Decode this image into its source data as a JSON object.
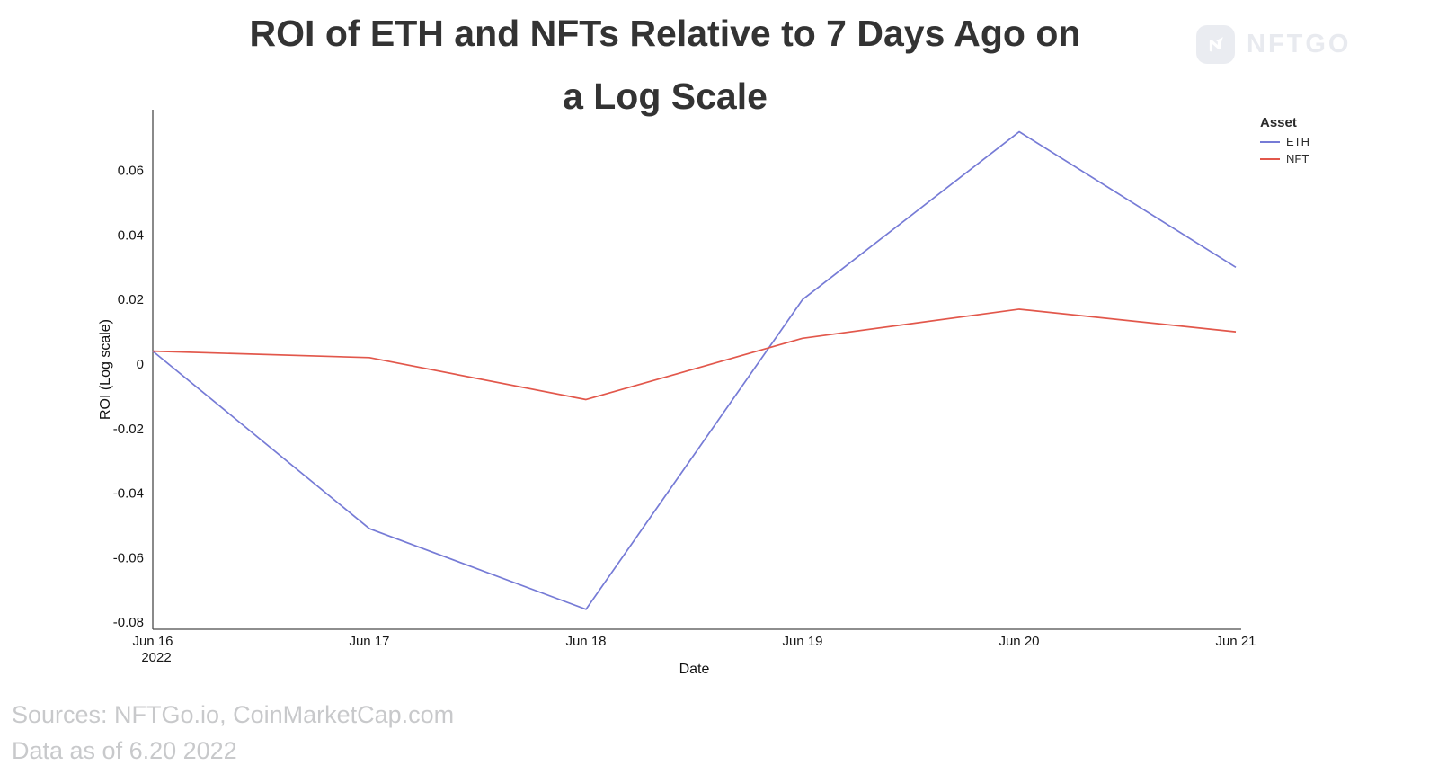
{
  "title": {
    "line1": "ROI of ETH and NFTs Relative to 7 Days Ago on",
    "line2": "a Log Scale"
  },
  "logo": {
    "text": "NFTGO"
  },
  "legend": {
    "title": "Asset",
    "items": [
      {
        "label": "ETH",
        "color": "#767bd6"
      },
      {
        "label": "NFT",
        "color": "#e2574b"
      }
    ]
  },
  "footer": {
    "sources": "Sources: NFTGo.io, CoinMarketCap.com",
    "data_as_of": "Data as of 6.20 2022"
  },
  "chart_data": {
    "type": "line",
    "title": "ROI of ETH and NFTs Relative to 7 Days Ago on a Log Scale",
    "xlabel": "Date",
    "ylabel": "ROI (Log scale)",
    "x_tick_labels": [
      "Jun 16",
      "Jun 17",
      "Jun 18",
      "Jun 19",
      "Jun 20",
      "Jun 21"
    ],
    "x_first_tick_sub": "2022",
    "y_ticks": [
      0.06,
      0.04,
      0.02,
      0,
      -0.02,
      -0.04,
      -0.06,
      -0.08
    ],
    "ylim": [
      -0.085,
      0.078
    ],
    "grid": false,
    "legend_position": "right",
    "legend_title": "Asset",
    "series": [
      {
        "name": "ETH",
        "color": "#767bd6",
        "values": [
          0.004,
          -0.051,
          -0.076,
          0.02,
          0.072,
          0.03
        ]
      },
      {
        "name": "NFT",
        "color": "#e2574b",
        "values": [
          0.004,
          0.002,
          -0.011,
          0.008,
          0.017,
          0.01
        ]
      }
    ]
  }
}
